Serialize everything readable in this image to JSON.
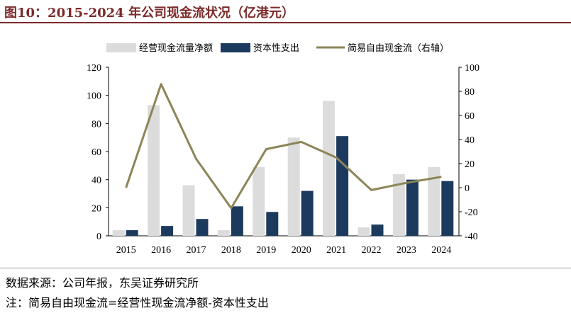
{
  "header": {
    "title": "图10：2015-2024 年公司现金流状况（亿港元）"
  },
  "footer": {
    "source": "数据来源：公司年报，东吴证券研究所",
    "note": "注：简易自由现金流=经营性现金流净额-资本性支出"
  },
  "colors": {
    "title": "#7b2a2a",
    "operating": "#dcdcdc",
    "capex": "#1c3a5e",
    "fcf": "#8c8558"
  },
  "chart_data": {
    "type": "bar",
    "categories": [
      "2015",
      "2016",
      "2017",
      "2018",
      "2019",
      "2020",
      "2021",
      "2022",
      "2023",
      "2024"
    ],
    "series": [
      {
        "name": "经营现金流量净额",
        "type": "bar",
        "axis": "left",
        "values": [
          4,
          93,
          36,
          4,
          49,
          70,
          96,
          6,
          44,
          49
        ]
      },
      {
        "name": "资本性支出",
        "type": "bar",
        "axis": "left",
        "values": [
          4,
          7,
          12,
          21,
          17,
          32,
          71,
          8,
          40,
          39
        ]
      },
      {
        "name": "简易自由现金流（右轴）",
        "type": "line",
        "axis": "right",
        "values": [
          0,
          86,
          24,
          -17,
          32,
          38,
          25,
          -2,
          4,
          9
        ]
      }
    ],
    "ylim": [
      0,
      120
    ],
    "y_ticks": [
      0,
      20,
      40,
      60,
      80,
      100,
      120
    ],
    "y2lim": [
      -40,
      100
    ],
    "y2_ticks": [
      -40,
      -20,
      0,
      20,
      40,
      60,
      80,
      100
    ],
    "grid": false,
    "legend": "top"
  }
}
